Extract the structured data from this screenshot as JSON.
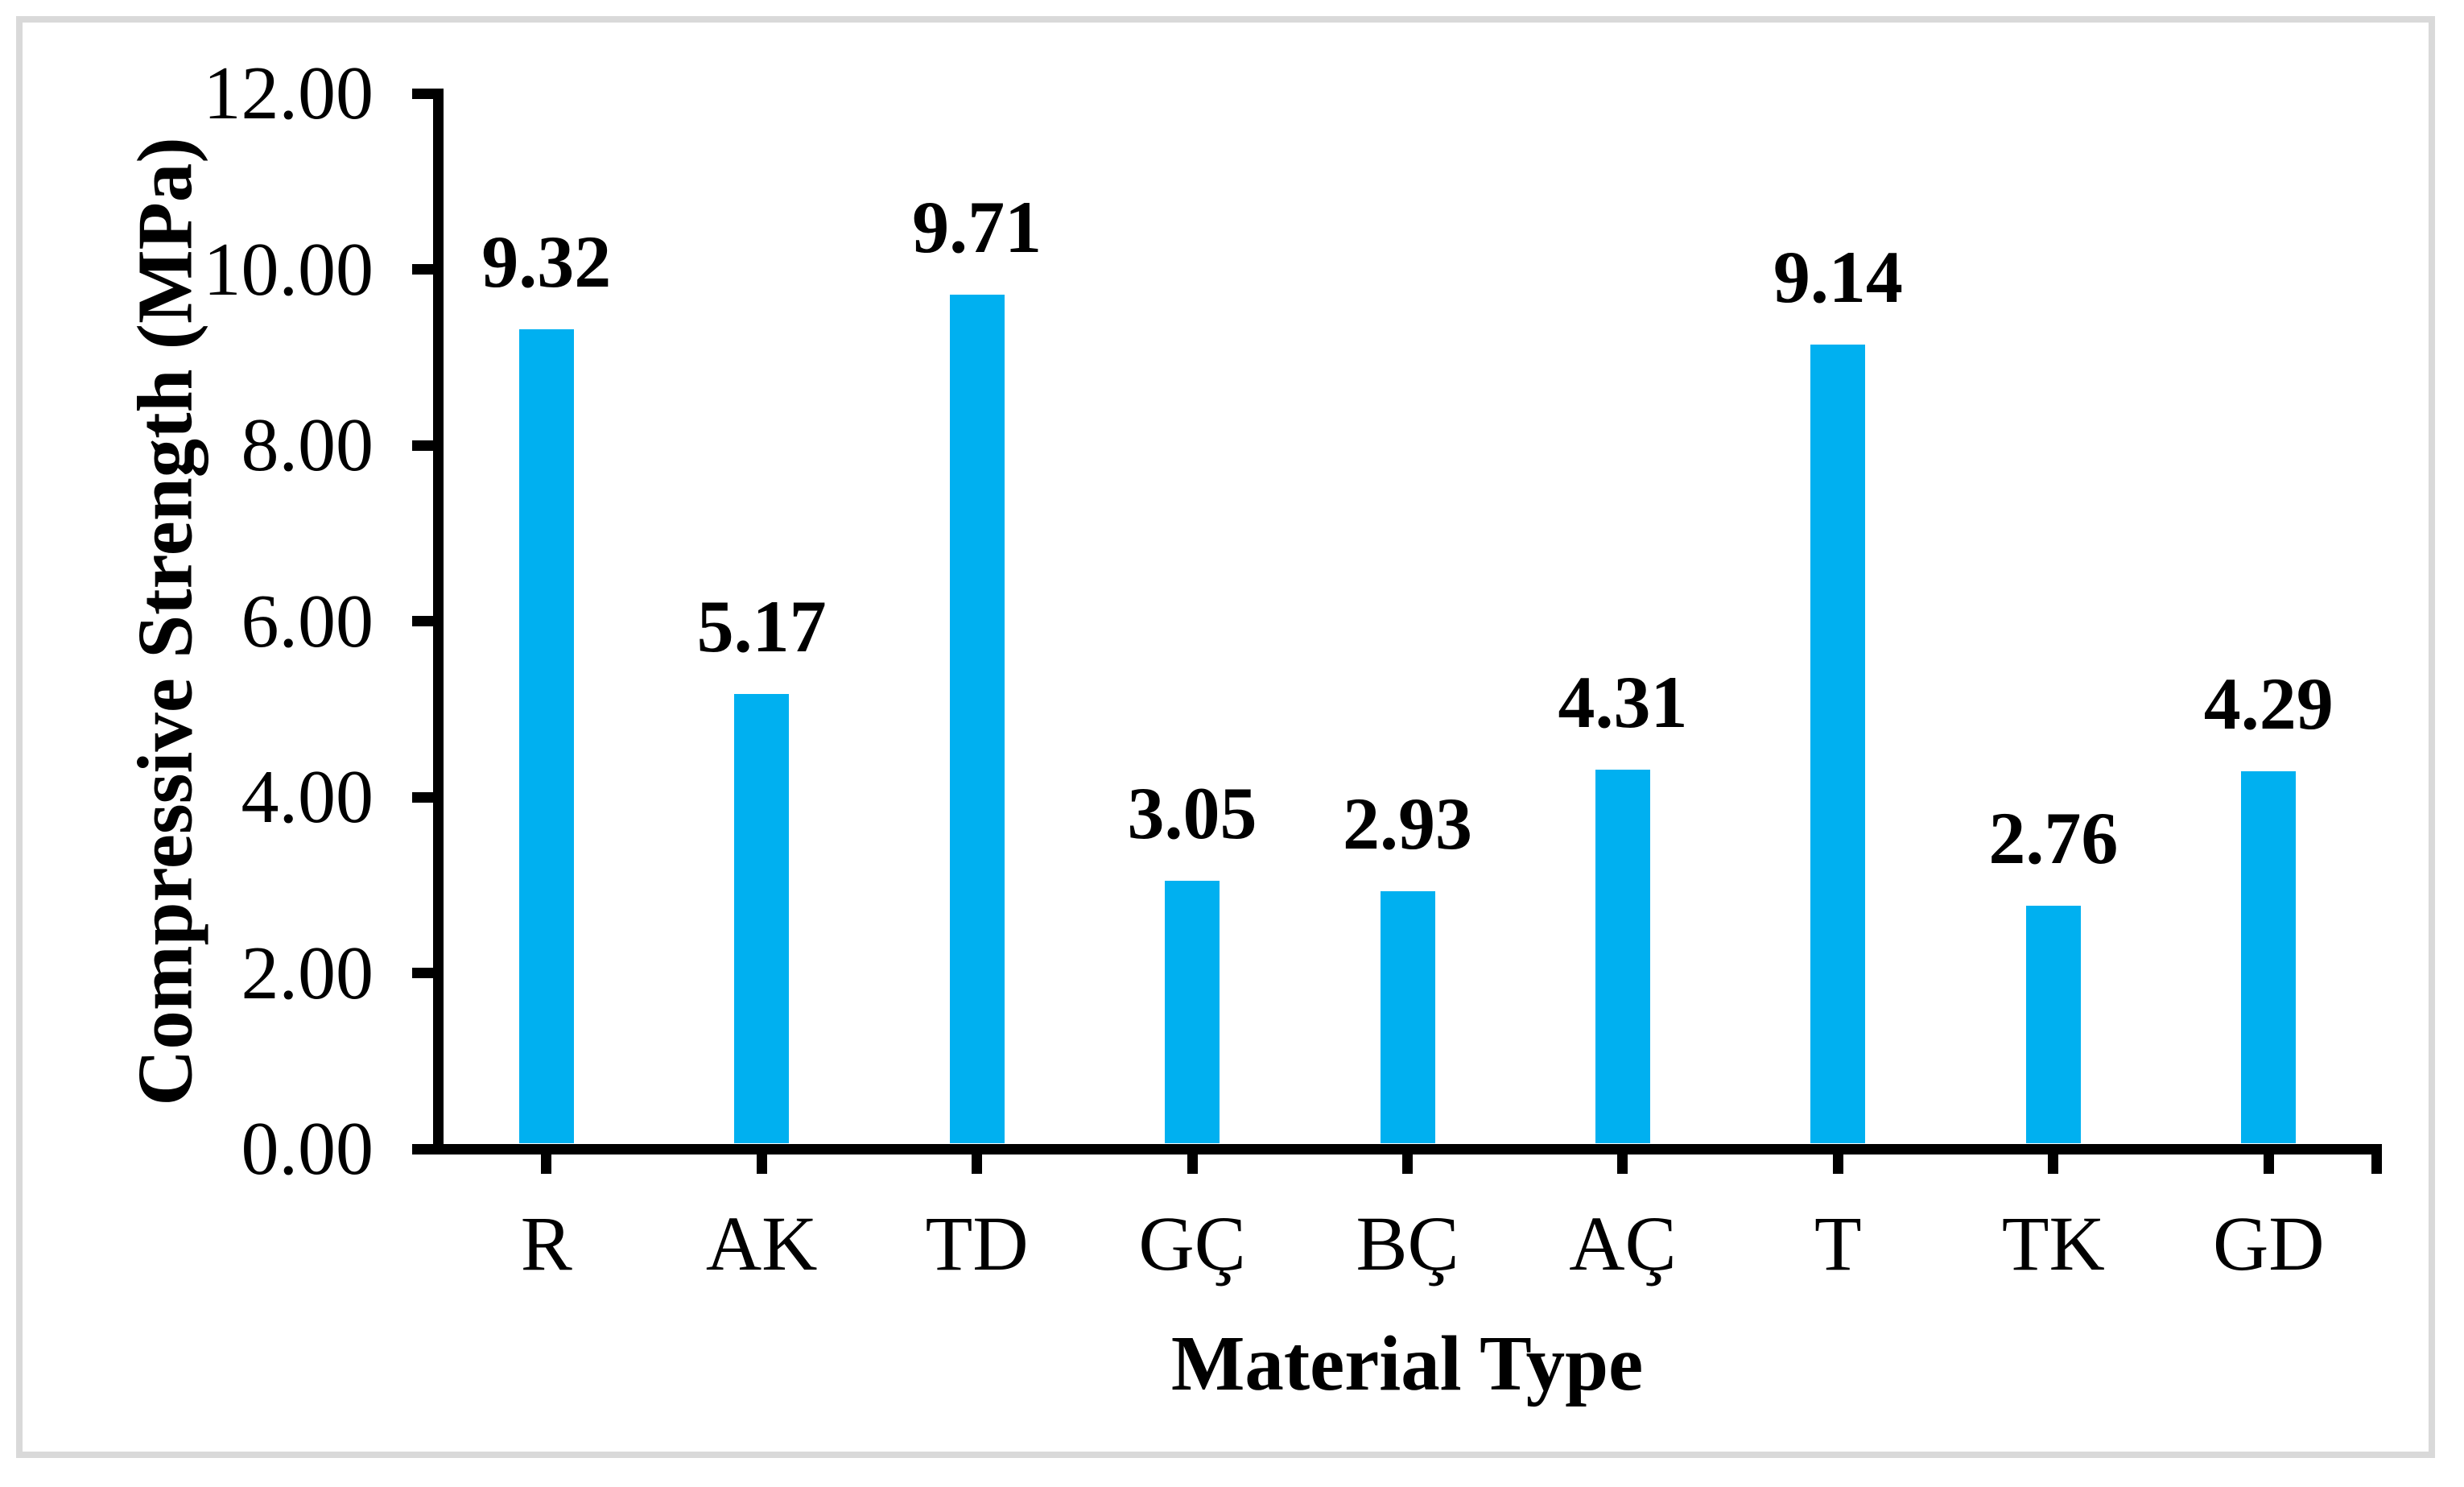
{
  "chart_data": {
    "type": "bar",
    "title": "",
    "xlabel": "Material Type",
    "ylabel": "Compressive Strength (MPa)",
    "categories": [
      "R",
      "AK",
      "TD",
      "GÇ",
      "BÇ",
      "AÇ",
      "T",
      "TK",
      "GD"
    ],
    "values": [
      9.32,
      5.17,
      9.71,
      3.05,
      2.93,
      4.31,
      9.14,
      2.76,
      4.29
    ],
    "data_labels": [
      "9.32",
      "5.17",
      "9.71",
      "3.05",
      "2.93",
      "4.31",
      "9.14",
      "2.76",
      "4.29"
    ],
    "y_ticks": [
      "12.00",
      "10.00",
      "8.00",
      "6.00",
      "4.00",
      "2.00",
      "0.00"
    ],
    "y_tick_values": [
      12,
      10,
      8,
      6,
      4,
      2,
      0
    ],
    "ylim": [
      0,
      12
    ],
    "grid": false,
    "legend": null,
    "bar_color": "#00B0F0",
    "axis_color": "#000000",
    "frame_border_color": "#D9D9D9",
    "background": "#FFFFFF"
  }
}
